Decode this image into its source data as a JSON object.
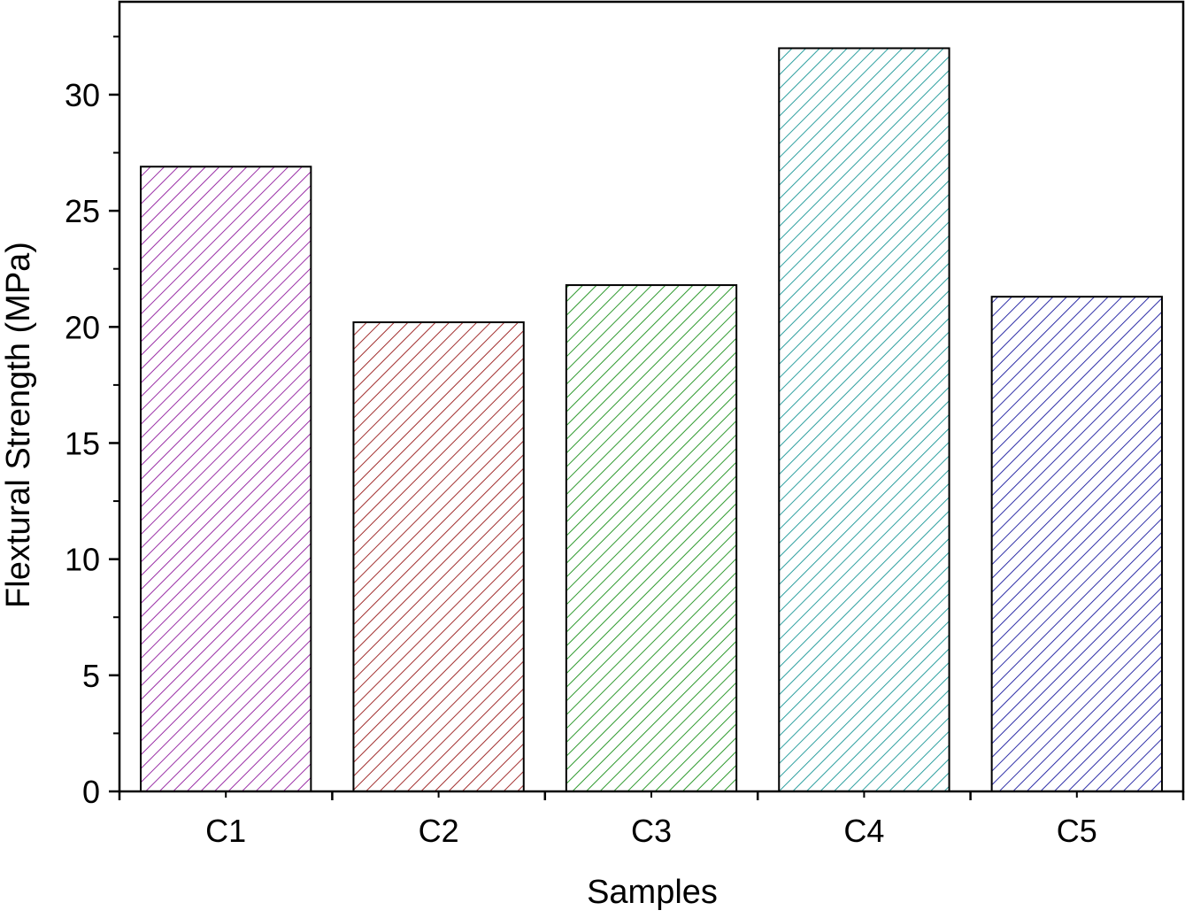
{
  "chart_data": {
    "type": "bar",
    "categories": [
      "C1",
      "C2",
      "C3",
      "C4",
      "C5"
    ],
    "series": [
      {
        "values": [
          26.9,
          20.2,
          21.8,
          32.0,
          21.3
        ]
      }
    ],
    "colors": [
      "#9a2fa6",
      "#a22f2f",
      "#2f9a2f",
      "#2fa0a0",
      "#2f2fa8"
    ],
    "fill_pattern": "diagonal-hatch",
    "xlabel": "Samples",
    "ylabel": "Flextural Strength (MPa)",
    "ylim": [
      0,
      34
    ],
    "yticks": [
      0,
      5,
      10,
      15,
      20,
      25,
      30
    ],
    "ytick_labels": [
      "0",
      "5",
      "10",
      "15",
      "20",
      "25",
      "30"
    ],
    "grid": false,
    "legend": false
  }
}
